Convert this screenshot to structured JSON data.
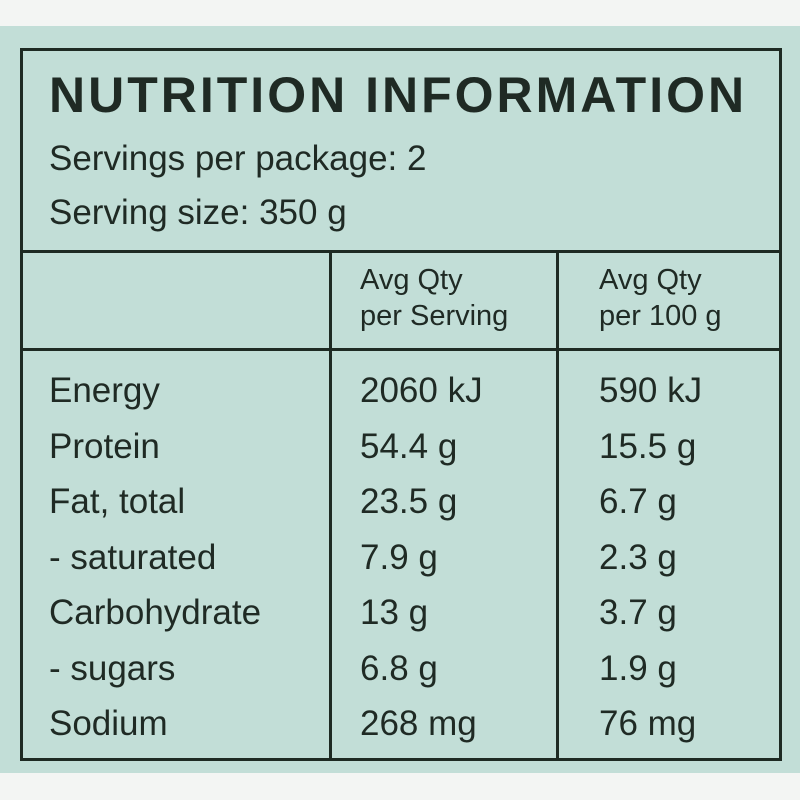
{
  "panel": {
    "title": "NUTRITION INFORMATION",
    "servings_per_package": "Servings per package: 2",
    "serving_size": "Serving size: 350 g"
  },
  "table": {
    "headers": {
      "per_serving": [
        "Avg Qty",
        "per Serving"
      ],
      "per_100g": [
        "Avg Qty",
        "per 100 g"
      ]
    },
    "rows": [
      {
        "name": "Energy",
        "per_serving": "2060 kJ",
        "per_100g": "590 kJ"
      },
      {
        "name": "Protein",
        "per_serving": "54.4 g",
        "per_100g": "15.5 g"
      },
      {
        "name": "Fat, total",
        "per_serving": "23.5 g",
        "per_100g": "6.7 g"
      },
      {
        "name": "- saturated",
        "per_serving": "7.9 g",
        "per_100g": "2.3 g"
      },
      {
        "name": "Carbohydrate",
        "per_serving": "13 g",
        "per_100g": "3.7 g"
      },
      {
        "name": "- sugars",
        "per_serving": "6.8 g",
        "per_100g": "1.9 g"
      },
      {
        "name": "Sodium",
        "per_serving": "268 mg",
        "per_100g": "76 mg"
      }
    ]
  },
  "colors": {
    "panel_background": "#c2ded7",
    "border": "#1e2a23",
    "text": "#1f2a24",
    "page_background": "#f3f5f3"
  }
}
